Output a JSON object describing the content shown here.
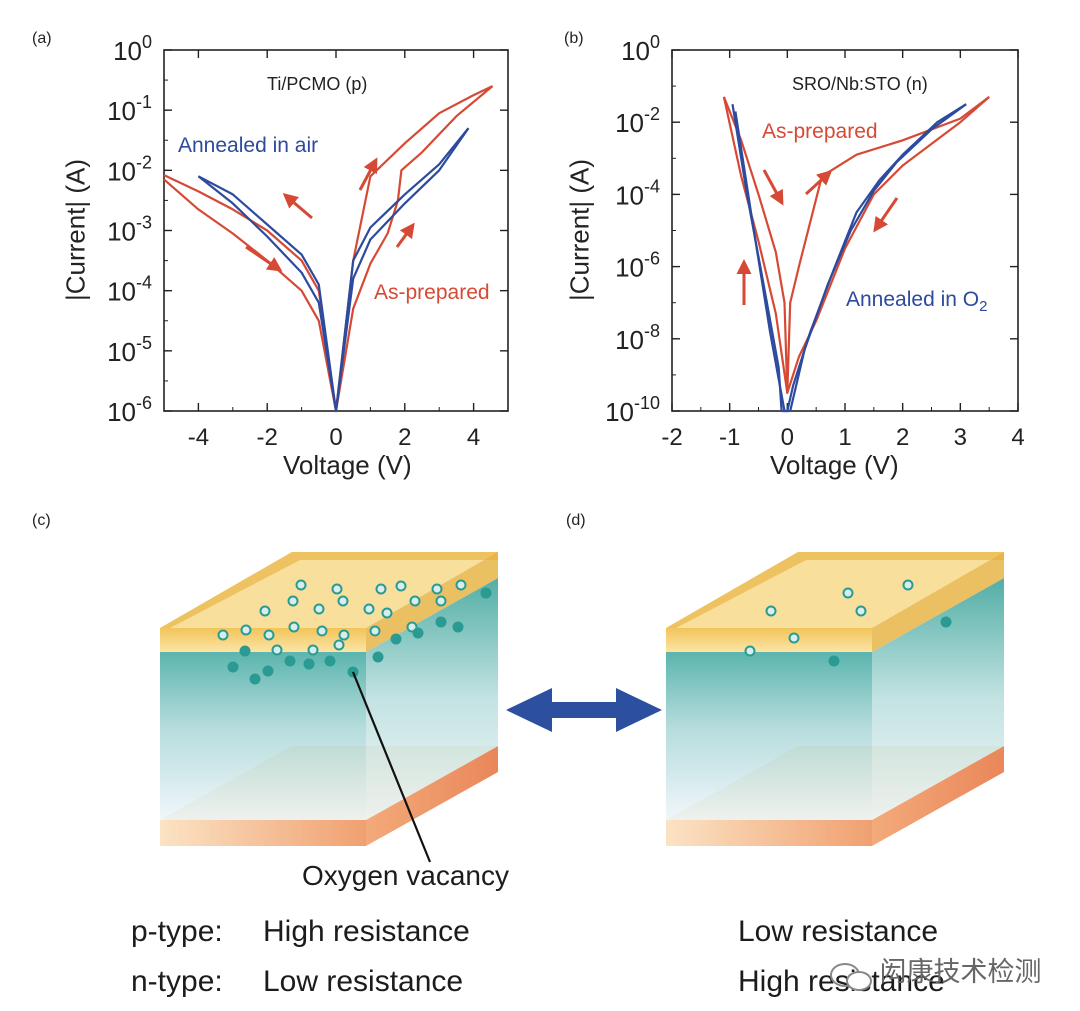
{
  "panels": {
    "a": {
      "letter": "(a)",
      "title": "Ti/PCMO (p)",
      "xlabel": "Voltage (V)",
      "ylabel": "|Current| (A)",
      "x_ticks": [
        "-4",
        "-2",
        "0",
        "2",
        "4"
      ],
      "y_tick_mantissa": "10",
      "y_tick_exponents": [
        "0",
        "-1",
        "-2",
        "-3",
        "-4",
        "-5",
        "-6"
      ],
      "curve_labels": {
        "annealed": "Annealed in air",
        "as_prepared": "As-prepared"
      }
    },
    "b": {
      "letter": "(b)",
      "title": "SRO/Nb:STO (n)",
      "xlabel": "Voltage (V)",
      "ylabel": "|Current| (A)",
      "x_ticks": [
        "-2",
        "-1",
        "0",
        "1",
        "2",
        "3",
        "4"
      ],
      "y_tick_mantissa": "10",
      "y_tick_exponents": [
        "0",
        "-2",
        "-4",
        "-6",
        "-8",
        "-10"
      ],
      "curve_labels": {
        "annealed_main": "Annealed in O",
        "annealed_sub": "2",
        "as_prepared": "As-prepared"
      }
    },
    "c": {
      "letter": "(c)",
      "callout": "Oxygen vacancy"
    },
    "d": {
      "letter": "(d)"
    }
  },
  "resistance_table": {
    "rows": [
      {
        "type": "p-type:",
        "left": "High resistance",
        "right": "Low resistance"
      },
      {
        "type": "n-type:",
        "left": "Low resistance",
        "right": "High resistance"
      }
    ]
  },
  "watermark": "闳康技术检测",
  "colors": {
    "red": "#d64a35",
    "blue": "#2c4a9e",
    "gold": "#e7b548",
    "teal": "#2a9a93",
    "arrow": "#2c4fa0"
  },
  "chart_data": [
    {
      "type": "line",
      "title": "Ti/PCMO (p)",
      "xlabel": "Voltage (V)",
      "ylabel": "|Current| (A)",
      "xlim": [
        -5,
        5
      ],
      "ylim_log10": [
        -6,
        0
      ],
      "series": [
        {
          "name": "As-prepared (sweep 1)",
          "color": "#d64a35",
          "points": [
            [
              -5,
              -2.08
            ],
            [
              -4,
              -2.35
            ],
            [
              -3,
              -2.65
            ],
            [
              -2,
              -3.0
            ],
            [
              -1,
              -3.5
            ],
            [
              -0.5,
              -4.0
            ],
            [
              0,
              -6
            ],
            [
              0.5,
              -3.5
            ],
            [
              1,
              -2.1
            ],
            [
              2,
              -1.55
            ],
            [
              3,
              -1.05
            ],
            [
              4,
              -0.75
            ],
            [
              4.55,
              -0.6
            ]
          ]
        },
        {
          "name": "As-prepared (sweep 2)",
          "color": "#d64a35",
          "points": [
            [
              -5,
              -2.15
            ],
            [
              -4,
              -2.65
            ],
            [
              -3,
              -3.05
            ],
            [
              -2,
              -3.5
            ],
            [
              -1,
              -4.0
            ],
            [
              -0.5,
              -4.5
            ],
            [
              0,
              -6
            ],
            [
              0.5,
              -4.3
            ],
            [
              1,
              -3.55
            ],
            [
              1.5,
              -3.05
            ],
            [
              1.8,
              -2.5
            ],
            [
              1.9,
              -2.0
            ],
            [
              2.5,
              -1.7
            ],
            [
              3.5,
              -1.1
            ],
            [
              4.55,
              -0.6
            ]
          ]
        },
        {
          "name": "Annealed in air (sweep 1)",
          "color": "#2c4a9e",
          "points": [
            [
              -4,
              -2.1
            ],
            [
              -3,
              -2.4
            ],
            [
              -2,
              -2.9
            ],
            [
              -1,
              -3.4
            ],
            [
              -0.5,
              -3.9
            ],
            [
              0,
              -6
            ],
            [
              0.5,
              -3.5
            ],
            [
              1,
              -2.95
            ],
            [
              2,
              -2.4
            ],
            [
              3,
              -1.9
            ],
            [
              3.85,
              -1.3
            ]
          ]
        },
        {
          "name": "Annealed in air (sweep 2)",
          "color": "#2c4a9e",
          "points": [
            [
              -4,
              -2.1
            ],
            [
              -3,
              -2.55
            ],
            [
              -2,
              -3.1
            ],
            [
              -1,
              -3.7
            ],
            [
              -0.5,
              -4.2
            ],
            [
              0,
              -6
            ],
            [
              0.5,
              -3.8
            ],
            [
              1,
              -3.15
            ],
            [
              2,
              -2.55
            ],
            [
              3,
              -2.0
            ],
            [
              3.85,
              -1.3
            ]
          ]
        }
      ]
    },
    {
      "type": "line",
      "title": "SRO/Nb:STO (n)",
      "xlabel": "Voltage (V)",
      "ylabel": "|Current| (A)",
      "xlim": [
        -2,
        4
      ],
      "ylim_log10": [
        -10,
        0
      ],
      "series": [
        {
          "name": "As-prepared (sweep 1)",
          "color": "#d64a35",
          "points": [
            [
              -1.1,
              -1.3
            ],
            [
              -0.8,
              -2.5
            ],
            [
              -0.5,
              -4.0
            ],
            [
              -0.2,
              -5.6
            ],
            [
              -0.05,
              -7.0
            ],
            [
              0,
              -9.5
            ],
            [
              0.05,
              -7.0
            ],
            [
              0.2,
              -6.0
            ],
            [
              0.6,
              -3.5
            ],
            [
              1.2,
              -2.9
            ],
            [
              2.0,
              -2.5
            ],
            [
              3.0,
              -1.9
            ],
            [
              3.5,
              -1.3
            ]
          ]
        },
        {
          "name": "As-prepared (sweep 2)",
          "color": "#d64a35",
          "points": [
            [
              -1.1,
              -1.3
            ],
            [
              -0.8,
              -3.5
            ],
            [
              -0.5,
              -5.3
            ],
            [
              -0.2,
              -7.3
            ],
            [
              0,
              -9.5
            ],
            [
              0.2,
              -8.5
            ],
            [
              0.5,
              -7.5
            ],
            [
              1.0,
              -5.5
            ],
            [
              1.5,
              -4.0
            ],
            [
              2.0,
              -3.2
            ],
            [
              2.5,
              -2.6
            ],
            [
              3.0,
              -2.0
            ],
            [
              3.5,
              -1.3
            ]
          ]
        },
        {
          "name": "Annealed in O2 (sweep 1)",
          "color": "#2c4a9e",
          "points": [
            [
              -0.95,
              -1.5
            ],
            [
              -0.7,
              -4.0
            ],
            [
              -0.4,
              -6.6
            ],
            [
              -0.15,
              -8.8
            ],
            [
              -0.1,
              -10
            ],
            [
              0,
              -10
            ],
            [
              0.1,
              -9.3
            ],
            [
              0.4,
              -7.8
            ],
            [
              0.8,
              -6.1
            ],
            [
              1.2,
              -4.5
            ],
            [
              1.6,
              -3.6
            ],
            [
              2.0,
              -2.9
            ],
            [
              2.6,
              -2.0
            ],
            [
              3.1,
              -1.5
            ]
          ]
        },
        {
          "name": "Annealed in O2 (sweep 2)",
          "color": "#2c4a9e",
          "points": [
            [
              -0.9,
              -1.7
            ],
            [
              -0.6,
              -4.8
            ],
            [
              -0.3,
              -7.8
            ],
            [
              -0.05,
              -10
            ],
            [
              0.05,
              -10
            ],
            [
              0.3,
              -8.3
            ],
            [
              0.7,
              -6.5
            ],
            [
              1.1,
              -5.0
            ],
            [
              1.5,
              -3.9
            ],
            [
              1.9,
              -3.1
            ],
            [
              2.5,
              -2.2
            ],
            [
              3.1,
              -1.5
            ]
          ]
        }
      ]
    }
  ]
}
